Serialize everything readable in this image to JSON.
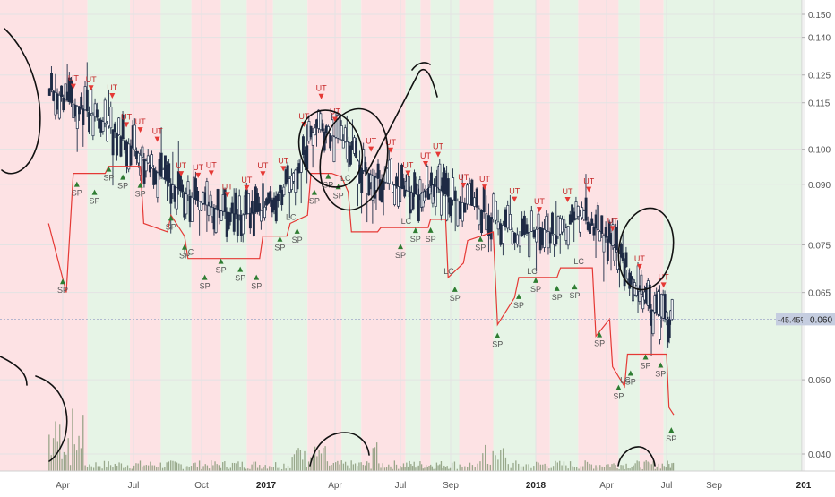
{
  "chart_data": {
    "type": "candlestick",
    "colors": {
      "up_bg": "#e6f4e6",
      "down_bg": "#fde2e4",
      "candle": "#1e2b45",
      "trail_line": "#e53935",
      "volume": "#8a9a7a",
      "marker_up": "#2e7d32",
      "marker_down": "#e53935",
      "annotation": "#111111",
      "price_tag": "#c5cde0"
    },
    "y_axis": {
      "ticks": [
        "0.150",
        "0.140",
        "0.125",
        "0.115",
        "0.100",
        "0.090",
        "0.075",
        "0.065",
        "0.050",
        "0.040"
      ],
      "tick_values": [
        0.15,
        0.14,
        0.125,
        0.115,
        0.1,
        0.09,
        0.075,
        0.065,
        0.05,
        0.04
      ],
      "scale": "log"
    },
    "x_axis": {
      "labels": [
        "Apr",
        "Jul",
        "Oct",
        "2017",
        "Apr",
        "Jul",
        "Sep",
        "2018",
        "Apr",
        "Jul",
        "Sep",
        "201"
      ],
      "bold": [
        false,
        false,
        false,
        true,
        false,
        false,
        false,
        true,
        false,
        false,
        false,
        true
      ]
    },
    "price_tags": {
      "change": "-45.45%",
      "last": "0.060"
    },
    "marker_labels": {
      "up": "SP",
      "down": "UT",
      "lc": "LC"
    },
    "price_path": [
      [
        -0.2,
        0.12
      ],
      [
        0.1,
        0.115
      ],
      [
        0.35,
        0.112
      ],
      [
        0.6,
        0.108
      ],
      [
        0.8,
        0.104
      ],
      [
        1.1,
        0.098
      ],
      [
        1.4,
        0.092
      ],
      [
        1.7,
        0.088
      ],
      [
        2.0,
        0.085
      ],
      [
        2.3,
        0.083
      ],
      [
        2.6,
        0.082
      ],
      [
        2.9,
        0.083
      ],
      [
        3.2,
        0.088
      ],
      [
        3.45,
        0.095
      ],
      [
        3.7,
        0.107
      ],
      [
        3.95,
        0.104
      ],
      [
        4.2,
        0.102
      ],
      [
        4.4,
        0.094
      ],
      [
        4.7,
        0.091
      ],
      [
        5.0,
        0.089
      ],
      [
        5.35,
        0.087
      ],
      [
        5.65,
        0.09
      ],
      [
        6.0,
        0.086
      ],
      [
        6.3,
        0.084
      ],
      [
        6.5,
        0.081
      ],
      [
        6.8,
        0.077
      ],
      [
        7.05,
        0.079
      ],
      [
        7.3,
        0.077
      ],
      [
        7.6,
        0.082
      ],
      [
        7.9,
        0.078
      ],
      [
        8.2,
        0.073
      ],
      [
        8.45,
        0.067
      ],
      [
        8.7,
        0.062
      ],
      [
        8.95,
        0.06
      ],
      [
        9.15,
        0.06
      ]
    ],
    "trail_path": [
      [
        -0.2,
        0.08
      ],
      [
        0.05,
        0.065
      ],
      [
        0.15,
        0.093
      ],
      [
        0.6,
        0.093
      ],
      [
        0.65,
        0.095
      ],
      [
        1.1,
        0.095
      ],
      [
        1.15,
        0.08
      ],
      [
        1.5,
        0.078
      ],
      [
        1.55,
        0.082
      ],
      [
        1.75,
        0.077
      ],
      [
        1.8,
        0.072
      ],
      [
        2.9,
        0.072
      ],
      [
        2.95,
        0.077
      ],
      [
        3.3,
        0.077
      ],
      [
        3.35,
        0.08
      ],
      [
        3.6,
        0.082
      ],
      [
        3.65,
        0.093
      ],
      [
        3.95,
        0.093
      ],
      [
        4.1,
        0.092
      ],
      [
        4.2,
        0.088
      ],
      [
        4.25,
        0.078
      ],
      [
        4.65,
        0.078
      ],
      [
        4.7,
        0.079
      ],
      [
        5.55,
        0.079
      ],
      [
        5.6,
        0.081
      ],
      [
        5.9,
        0.081
      ],
      [
        5.95,
        0.068
      ],
      [
        6.15,
        0.071
      ],
      [
        6.2,
        0.076
      ],
      [
        6.5,
        0.078
      ],
      [
        6.55,
        0.059
      ],
      [
        6.75,
        0.064
      ],
      [
        6.8,
        0.068
      ],
      [
        7.3,
        0.068
      ],
      [
        7.35,
        0.07
      ],
      [
        7.8,
        0.07
      ],
      [
        7.85,
        0.057
      ],
      [
        8.05,
        0.06
      ],
      [
        8.1,
        0.052
      ],
      [
        8.3,
        0.049
      ],
      [
        8.35,
        0.054
      ],
      [
        9.0,
        0.054
      ],
      [
        9.05,
        0.046
      ],
      [
        9.15,
        0.045
      ]
    ],
    "background_zones": [
      [
        0.0,
        0.35,
        "down"
      ],
      [
        0.35,
        0.95,
        "up"
      ],
      [
        0.95,
        1.4,
        "down"
      ],
      [
        1.4,
        1.85,
        "up"
      ],
      [
        1.85,
        2.3,
        "down"
      ],
      [
        2.3,
        2.7,
        "up"
      ],
      [
        2.7,
        3.1,
        "down"
      ],
      [
        3.1,
        3.6,
        "up"
      ],
      [
        3.6,
        4.1,
        "down"
      ],
      [
        4.1,
        4.4,
        "up"
      ],
      [
        4.4,
        5.1,
        "down"
      ],
      [
        5.1,
        5.4,
        "up"
      ],
      [
        5.4,
        5.6,
        "down"
      ],
      [
        5.6,
        6.1,
        "up"
      ],
      [
        6.1,
        6.5,
        "down"
      ],
      [
        6.5,
        7.0,
        "up"
      ],
      [
        7.0,
        7.2,
        "down"
      ],
      [
        7.2,
        7.6,
        "up"
      ],
      [
        7.6,
        8.2,
        "down"
      ],
      [
        8.2,
        8.55,
        "up"
      ],
      [
        8.55,
        8.95,
        "down"
      ],
      [
        8.95,
        9.15,
        "up"
      ]
    ]
  }
}
